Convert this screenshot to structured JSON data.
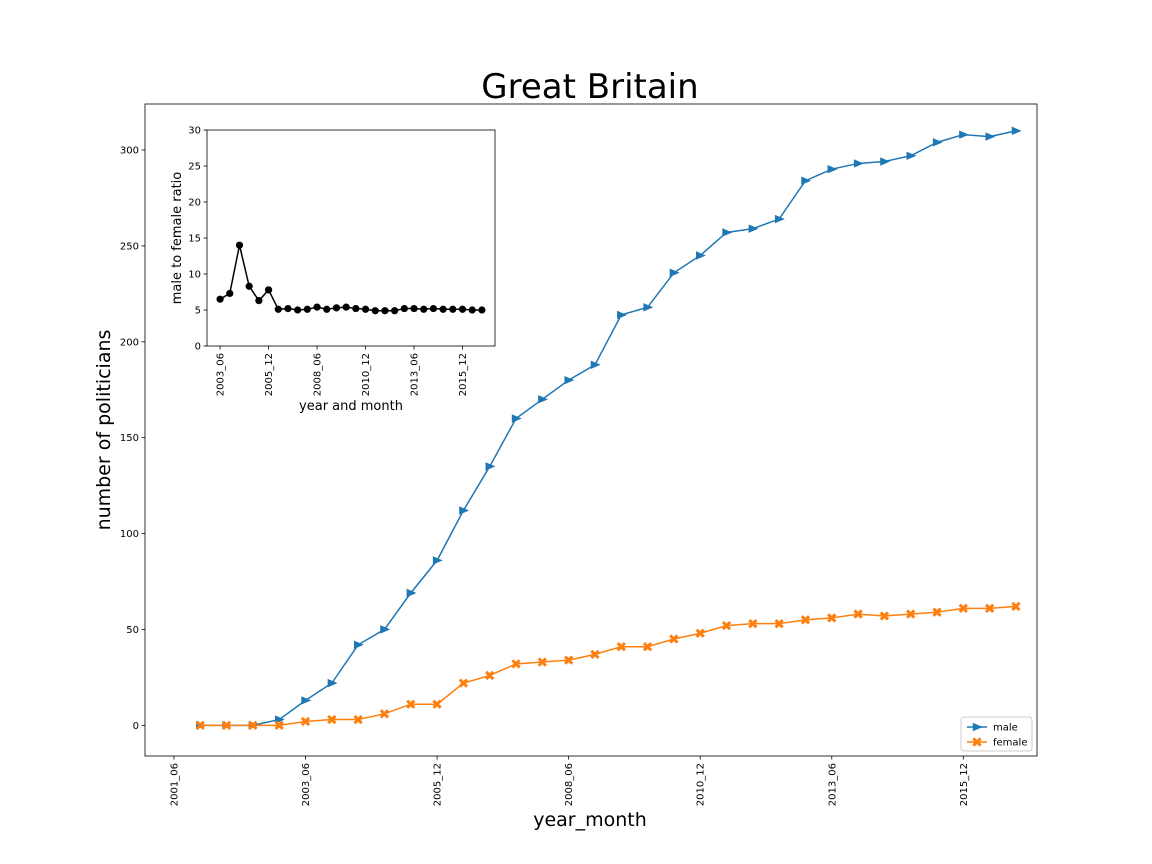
{
  "chart_data": [
    {
      "type": "line",
      "title": "Great Britain",
      "xlabel": "year_month",
      "ylabel": "number of politicians",
      "x_tick_labels": [
        "2001_06",
        "2003_06",
        "2005_12",
        "2008_06",
        "2010_12",
        "2013_06",
        "2015_12"
      ],
      "x_tick_index": [
        -1,
        4,
        9,
        14,
        19,
        24,
        29
      ],
      "y_ticks": [
        0,
        50,
        100,
        150,
        200,
        250,
        300
      ],
      "ylim": [
        -16,
        324
      ],
      "xlim": [
        -2.1,
        31.8
      ],
      "legend_position": "lower right",
      "grid": false,
      "series": [
        {
          "name": "male",
          "color": "#1f77b4",
          "marker": "triangle-right",
          "values": [
            0,
            0,
            0,
            3,
            13,
            22,
            42,
            50,
            69,
            86,
            112,
            135,
            160,
            170,
            180,
            188,
            214,
            218,
            236,
            245,
            257,
            259,
            264,
            284,
            290,
            293,
            294,
            297,
            304,
            308,
            307,
            310
          ]
        },
        {
          "name": "female",
          "color": "#ff7f0e",
          "marker": "x",
          "values": [
            0,
            0,
            0,
            0,
            2,
            3,
            3,
            6,
            11,
            11,
            22,
            26,
            32,
            33,
            34,
            37,
            41,
            41,
            45,
            48,
            52,
            53,
            53,
            55,
            56,
            58,
            57,
            58,
            59,
            61,
            61,
            62
          ]
        }
      ]
    },
    {
      "type": "line",
      "title": "",
      "xlabel": "year and month",
      "ylabel": "male to female ratio",
      "x_tick_labels": [
        "2003_06",
        "2005_12",
        "2008_06",
        "2010_12",
        "2013_06",
        "2015_12"
      ],
      "x_tick_index": [
        0,
        5,
        10,
        15,
        20,
        25
      ],
      "y_ticks": [
        0,
        5,
        10,
        15,
        20,
        25,
        30
      ],
      "ylim": [
        0,
        30
      ],
      "xlim": [
        -1.35,
        28.35
      ],
      "grid": false,
      "series": [
        {
          "color": "#000000",
          "marker": "circle",
          "values": [
            6.5,
            7.3,
            14,
            8.3,
            6.3,
            7.8,
            5.1,
            5.2,
            5,
            5.1,
            5.4,
            5.1,
            5.3,
            5.4,
            5.2,
            5.1,
            4.9,
            4.9,
            4.9,
            5.2,
            5.2,
            5.1,
            5.2,
            5.1,
            5.1,
            5.1,
            5,
            5
          ]
        }
      ]
    }
  ]
}
